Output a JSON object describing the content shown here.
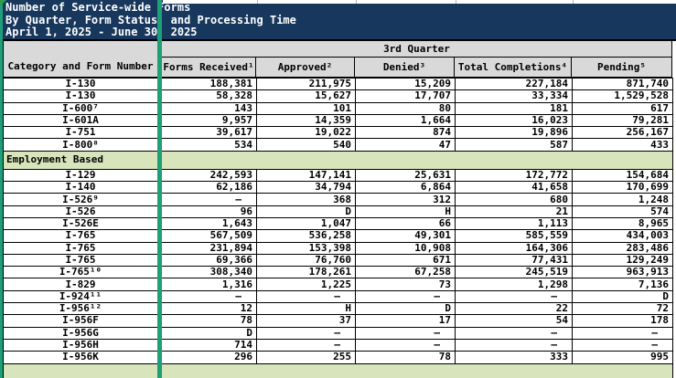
{
  "title": {
    "lines": [
      "Number of Service-wide Forms",
      "By Quarter, Form Status, and Processing Time",
      "April 1, 2025 - June 30, 2025"
    ]
  },
  "table": {
    "quarter_header": "3rd Quarter",
    "category_header": "Category and Form Number",
    "columns": [
      "Forms Received¹",
      "Approved²",
      "Denied³",
      "Total Completions⁴",
      "Pending⁵"
    ],
    "rows": [
      {
        "type": "data",
        "label": "I-130",
        "values": [
          "188,381",
          "211,975",
          "15,209",
          "227,184",
          "871,740"
        ]
      },
      {
        "type": "data",
        "label": "I-130",
        "values": [
          "58,328",
          "15,627",
          "17,707",
          "33,334",
          "1,529,528"
        ]
      },
      {
        "type": "data",
        "label": "I-600⁷",
        "values": [
          "143",
          "101",
          "80",
          "181",
          "617"
        ]
      },
      {
        "type": "data",
        "label": "I-601A",
        "values": [
          "9,957",
          "14,359",
          "1,664",
          "16,023",
          "79,281"
        ]
      },
      {
        "type": "data",
        "label": "I-751",
        "values": [
          "39,617",
          "19,022",
          "874",
          "19,896",
          "256,167"
        ]
      },
      {
        "type": "data",
        "label": "I-800⁸",
        "values": [
          "534",
          "540",
          "47",
          "587",
          "433"
        ]
      },
      {
        "type": "section",
        "label": "Employment Based"
      },
      {
        "type": "data",
        "label": "I-129",
        "values": [
          "242,593",
          "147,141",
          "25,631",
          "172,772",
          "154,684"
        ]
      },
      {
        "type": "data",
        "label": "I-140",
        "values": [
          "62,186",
          "34,794",
          "6,864",
          "41,658",
          "170,699"
        ]
      },
      {
        "type": "data",
        "label": "I-526⁹",
        "values": [
          "–",
          "368",
          "312",
          "680",
          "1,248"
        ]
      },
      {
        "type": "data",
        "label": "I-526",
        "values": [
          "96",
          "D",
          "H",
          "21",
          "574"
        ]
      },
      {
        "type": "data",
        "label": "I-526E",
        "values": [
          "1,643",
          "1,047",
          "66",
          "1,113",
          "8,965"
        ]
      },
      {
        "type": "data",
        "label": "I-765",
        "values": [
          "567,509",
          "536,258",
          "49,301",
          "585,559",
          "434,003"
        ]
      },
      {
        "type": "data",
        "label": "I-765",
        "values": [
          "231,894",
          "153,398",
          "10,908",
          "164,306",
          "283,486"
        ]
      },
      {
        "type": "data",
        "label": "I-765",
        "values": [
          "69,366",
          "76,760",
          "671",
          "77,431",
          "129,249"
        ]
      },
      {
        "type": "data",
        "label": "I-765¹⁰",
        "values": [
          "308,340",
          "178,261",
          "67,258",
          "245,519",
          "963,913"
        ]
      },
      {
        "type": "data",
        "label": "I-829",
        "values": [
          "1,316",
          "1,225",
          "73",
          "1,298",
          "7,136"
        ]
      },
      {
        "type": "data",
        "label": "I-924¹¹",
        "values": [
          "–",
          "–",
          "–",
          "–",
          "D"
        ]
      },
      {
        "type": "data",
        "label": "I-956¹²",
        "values": [
          "12",
          "H",
          "D",
          "22",
          "72"
        ]
      },
      {
        "type": "data",
        "label": "I-956F",
        "values": [
          "78",
          "37",
          "17",
          "54",
          "178"
        ]
      },
      {
        "type": "data",
        "label": "I-956G",
        "values": [
          "D",
          "–",
          "–",
          "–",
          "–"
        ]
      },
      {
        "type": "data",
        "label": "I-956H",
        "values": [
          "714",
          "–",
          "–",
          "–",
          "–"
        ]
      },
      {
        "type": "data",
        "label": "I-956K",
        "values": [
          "296",
          "255",
          "78",
          "333",
          "995"
        ]
      },
      {
        "type": "section",
        "label": "",
        "bottom": true
      }
    ]
  },
  "colors": {
    "navy": "#17375D",
    "header_gray": "#D9D9D9",
    "section_green": "#D8E4BC",
    "border_green": "#1E9F78",
    "triangle_green": "#2E9E4F"
  }
}
